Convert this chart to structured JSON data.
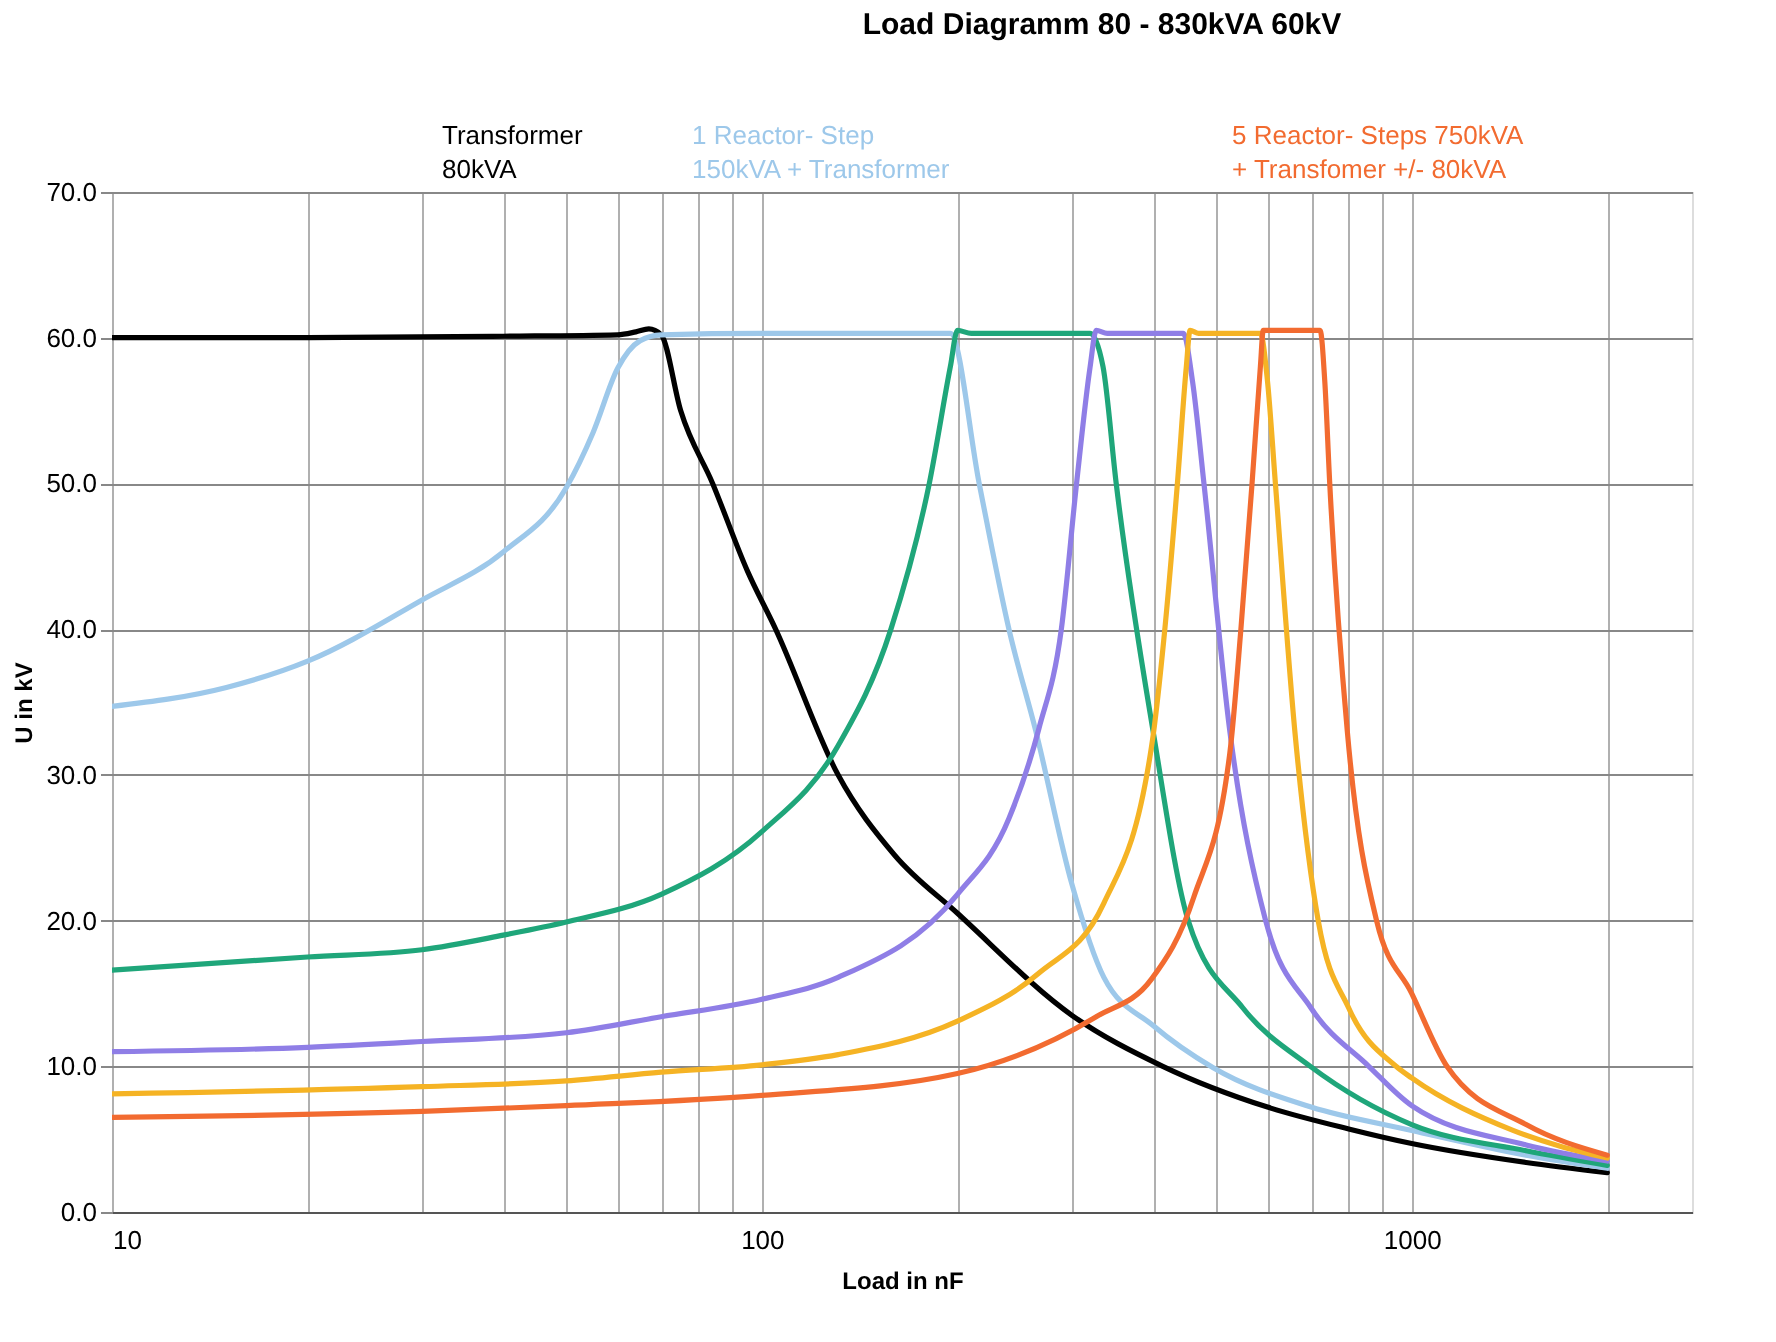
{
  "chart_data": {
    "type": "line",
    "title": "Load Diagramm 80 - 830kVA  60kV",
    "xlabel": "Load in nF",
    "ylabel": "U in kV",
    "log": "x",
    "grid": true,
    "line_style": "solid",
    "marker": "none",
    "xlim": [
      10,
      2700
    ],
    "ylim": [
      0,
      70
    ],
    "xticks": [
      10,
      {
        "value": 20,
        "label": null
      },
      {
        "value": 30,
        "label": null
      },
      {
        "value": 40,
        "label": null
      },
      {
        "value": 50,
        "label": null
      },
      {
        "value": 60,
        "label": null
      },
      {
        "value": 70,
        "label": null
      },
      {
        "value": 80,
        "label": null
      },
      {
        "value": 90,
        "label": null
      },
      100,
      {
        "value": 200,
        "label": null
      },
      {
        "value": 300,
        "label": null
      },
      {
        "value": 400,
        "label": null
      },
      {
        "value": 500,
        "label": null
      },
      {
        "value": 600,
        "label": null
      },
      {
        "value": 700,
        "label": null
      },
      {
        "value": 800,
        "label": null
      },
      {
        "value": 900,
        "label": null
      },
      1000,
      {
        "value": 2000,
        "label": null
      }
    ],
    "yticks": [
      {
        "value": 0,
        "label": "0.0"
      },
      {
        "value": 10,
        "label": "10.0"
      },
      {
        "value": 20,
        "label": "20.0"
      },
      {
        "value": 30,
        "label": "30.0"
      },
      {
        "value": 40,
        "label": "40.0"
      },
      {
        "value": 50,
        "label": "50.0"
      },
      {
        "value": 60,
        "label": "60.0"
      },
      {
        "value": 70,
        "label": "70.0"
      }
    ],
    "series": [
      {
        "name": "Transformer\n80kVA",
        "color": "#000000",
        "x": [
          10,
          20,
          40,
          60,
          64,
          67,
          70,
          75,
          84,
          95,
          105,
          131,
          160,
          200,
          300,
          414,
          600,
          800,
          1000,
          1500,
          2000
        ],
        "values": [
          60,
          60,
          60.1,
          60.2,
          60.4,
          60.6,
          60.2,
          55,
          50,
          44,
          40,
          30,
          24.5,
          20.5,
          13.5,
          10,
          7.2,
          5.7,
          4.7,
          3.4,
          2.7
        ]
      },
      {
        "name": "1 Reactor- Step\n150kVA + Transformer",
        "color": "#9dc8ea",
        "x": [
          10,
          15,
          20,
          30,
          40,
          50,
          55,
          60,
          65,
          70,
          100,
          150,
          195,
          216,
          240,
          264,
          300,
          336,
          400,
          495,
          700,
          1000,
          1500,
          2000
        ],
        "values": [
          34.7,
          36,
          37.8,
          42,
          45.3,
          49.7,
          53.5,
          57.9,
          59.8,
          60.2,
          60.3,
          60.3,
          60.3,
          50,
          40,
          33,
          22.5,
          16.1,
          12.8,
          9.9,
          7.2,
          5.6,
          3.9,
          3.0
        ]
      },
      {
        "color": "#1fa67a",
        "x": [
          10,
          20,
          30,
          40,
          50,
          70,
          100,
          131,
          158,
          181,
          195,
          200,
          210,
          320,
          335,
          351,
          400,
          453,
          550,
          698,
          1000,
          1500,
          2000
        ],
        "values": [
          16.6,
          17.5,
          18,
          19,
          19.9,
          21.8,
          26.1,
          32,
          40,
          50,
          58,
          60.5,
          60.3,
          60.3,
          58,
          50,
          33,
          20,
          14,
          10,
          6,
          4.2,
          3.2
        ]
      },
      {
        "color": "#8f7ee6",
        "x": [
          10,
          20,
          30,
          50,
          70,
          100,
          131,
          200,
          240,
          267,
          289,
          305,
          320,
          327,
          340,
          445,
          460,
          479,
          525,
          596,
          700,
          859,
          1000,
          1500,
          2000
        ],
        "values": [
          11,
          11.3,
          11.7,
          12.3,
          13.4,
          14.6,
          16.1,
          21.8,
          27,
          33.2,
          40,
          50,
          58,
          60.5,
          60.3,
          60.3,
          57,
          50,
          33,
          20,
          14,
          10,
          7.3,
          4.6,
          3.5
        ]
      },
      {
        "color": "#f5b324",
        "x": [
          10,
          30,
          50,
          70,
          100,
          131,
          200,
          267,
          336,
          398,
          417,
          436,
          450,
          456,
          470,
          585,
          600,
          617,
          661,
          718,
          800,
          946,
          1000,
          1432,
          2000
        ],
        "values": [
          8.1,
          8.6,
          9,
          9.6,
          10.1,
          10.8,
          13.1,
          16.4,
          21.2,
          32,
          40,
          50,
          58,
          60.5,
          60.3,
          60.3,
          57,
          50,
          33,
          20,
          14,
          10,
          9.2,
          5.6,
          3.7
        ]
      },
      {
        "name": "5 Reactor- Steps 750kVA\n+ Transfomer +/- 80kVA",
        "color": "#f26b30",
        "x": [
          10,
          30,
          50,
          100,
          200,
          327,
          398,
          462,
          525,
          546,
          568,
          585,
          591,
          723,
          735,
          748,
          796,
          883,
          1000,
          1133,
          1500,
          2000
        ],
        "values": [
          6.5,
          6.9,
          7.3,
          8.0,
          9.5,
          13.4,
          16,
          21.6,
          31.5,
          40,
          50,
          58,
          60.5,
          60.5,
          57,
          50,
          33,
          20,
          15,
          10,
          6,
          3.9
        ]
      }
    ]
  }
}
